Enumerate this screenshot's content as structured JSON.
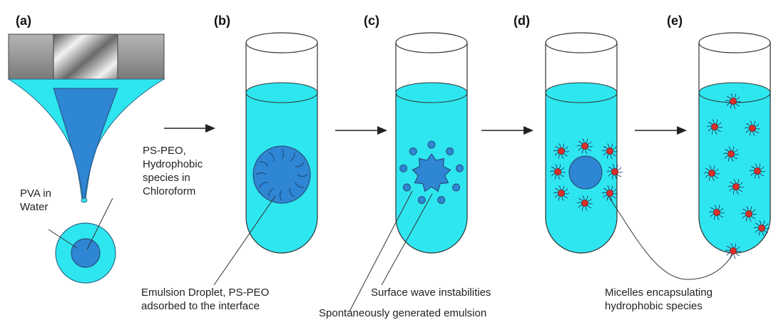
{
  "panels": {
    "a": "(a)",
    "b": "(b)",
    "c": "(c)",
    "d": "(d)",
    "e": "(e)"
  },
  "labels": {
    "pva_line1": "PVA in",
    "pva_line2": "Water",
    "pspeo_line1": "PS-PEO,",
    "pspeo_line2": "Hydrophobic",
    "pspeo_line3": "species in",
    "pspeo_line4": "Chloroform",
    "droplet_line1": "Emulsion Droplet, PS-PEO",
    "droplet_line2": "adsorbed to the interface",
    "wave": "Surface wave instabilities",
    "spont": "Spontaneously generated emulsion",
    "micelle_line1": "Micelles encapsulating",
    "micelle_line2": "hydrophobic species"
  },
  "colors": {
    "cyan": "#2ee6f0",
    "blue": "#2e86d4",
    "outline": "#2a4f7a",
    "red": "#d9302c",
    "metal": "#8f8f8f"
  }
}
